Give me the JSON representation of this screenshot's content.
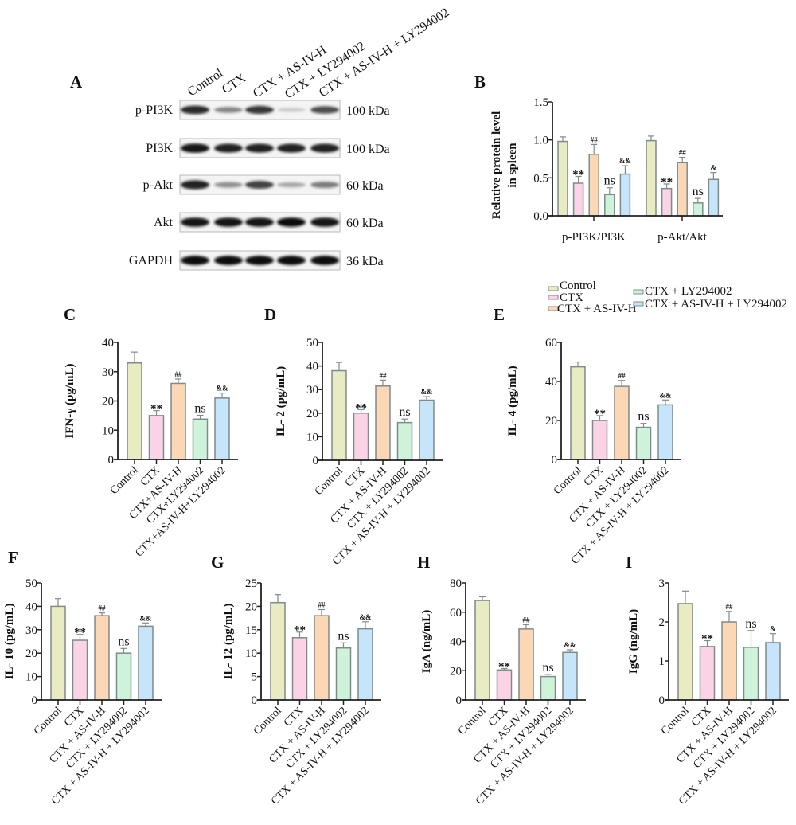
{
  "panel_letters": {
    "A": "A",
    "B": "B",
    "C": "C",
    "D": "D",
    "E": "E",
    "F": "F",
    "G": "G",
    "H": "H",
    "I": "I"
  },
  "colors": [
    "#e9ebc2",
    "#fbd3e6",
    "#fcd7b6",
    "#cef3da",
    "#c6e4fa"
  ],
  "bar_stroke": "#7d8c8a",
  "legend": [
    "Control",
    "CTX",
    "CTX + AS-IV-H",
    "CTX + LY294002",
    "CTX + AS-IV-H + LY294002"
  ],
  "western_blot": {
    "lanes": [
      "Control",
      "CTX",
      "CTX + AS-IV-H",
      "CTX + LY294002",
      "CTX + AS-IV-H + LY294002"
    ],
    "rows": [
      {
        "protein": "p-PI3K",
        "size": "100 kDa",
        "band_intensity": [
          0.85,
          0.45,
          0.8,
          0.15,
          0.7
        ]
      },
      {
        "protein": "PI3K",
        "size": "100 kDa",
        "band_intensity": [
          0.95,
          0.9,
          0.9,
          0.9,
          0.9
        ]
      },
      {
        "protein": "p-Akt",
        "size": "60 kDa",
        "band_intensity": [
          0.9,
          0.4,
          0.75,
          0.3,
          0.5
        ]
      },
      {
        "protein": "Akt",
        "size": "60 kDa",
        "band_intensity": [
          0.95,
          0.95,
          0.95,
          0.97,
          0.95
        ]
      },
      {
        "protein": "GAPDH",
        "size": "36 kDa",
        "band_intensity": [
          0.97,
          0.97,
          0.97,
          0.97,
          0.97
        ]
      }
    ]
  },
  "chart_data": [
    {
      "panel": "B",
      "type": "bar",
      "ylabel": [
        "Relative protein level",
        "in spleen"
      ],
      "categories": [
        "p-PI3K/PI3K",
        "p-Akt/Akt"
      ],
      "ylim": [
        0,
        1.5
      ],
      "yticks": [
        "0.0",
        "0.5",
        "1.0",
        "1.5"
      ],
      "series": [
        {
          "name": "Control",
          "values": [
            0.98,
            0.99
          ],
          "errors": [
            0.06,
            0.06
          ],
          "annotations": [
            "",
            ""
          ]
        },
        {
          "name": "CTX",
          "values": [
            0.43,
            0.36
          ],
          "errors": [
            0.09,
            0.06
          ],
          "annotations": [
            "**",
            "**"
          ]
        },
        {
          "name": "CTX + AS-IV-H",
          "values": [
            0.81,
            0.7
          ],
          "errors": [
            0.13,
            0.07
          ],
          "annotations": [
            "##",
            "##"
          ]
        },
        {
          "name": "CTX + LY294002",
          "values": [
            0.28,
            0.17
          ],
          "errors": [
            0.09,
            0.06
          ],
          "annotations": [
            "ns",
            "ns"
          ]
        },
        {
          "name": "CTX + AS-IV-H + LY294002",
          "values": [
            0.55,
            0.48
          ],
          "errors": [
            0.11,
            0.09
          ],
          "annotations": [
            "&&",
            "&"
          ]
        }
      ]
    },
    {
      "panel": "C",
      "type": "bar",
      "ylabel": "IFN-γ (pg/mL)",
      "ylim": [
        0,
        40
      ],
      "yticks": [
        "0",
        "10",
        "20",
        "30",
        "40"
      ],
      "categories": [
        "Control",
        "CTX",
        "CTX+AS-IV-H",
        "CTX+LY294002",
        "CTX+AS-IV-H+LY294002"
      ],
      "values": [
        33,
        15,
        26,
        13.8,
        21
      ],
      "errors": [
        3.7,
        1.7,
        1.5,
        1.3,
        1.7
      ],
      "annotations": [
        "",
        "**",
        "##",
        "ns",
        "&&"
      ]
    },
    {
      "panel": "D",
      "type": "bar",
      "ylabel": "IL- 2 (pg/mL)",
      "ylim": [
        0,
        50
      ],
      "yticks": [
        "0",
        "10",
        "20",
        "30",
        "40",
        "50"
      ],
      "categories": [
        "Control",
        "CTX",
        "CTX + AS-IV-H",
        "CTX + LY294002",
        "CTX + AS-IV-H + LY294002"
      ],
      "values": [
        38,
        20,
        31.5,
        16,
        25.5
      ],
      "errors": [
        3.5,
        1.5,
        2.5,
        1.5,
        1.5
      ],
      "annotations": [
        "",
        "**",
        "##",
        "ns",
        "&&"
      ]
    },
    {
      "panel": "E",
      "type": "bar",
      "ylabel": "IL- 4 (pg/mL)",
      "ylim": [
        0,
        60
      ],
      "yticks": [
        "0",
        "20",
        "40",
        "60"
      ],
      "categories": [
        "Control",
        "CTX",
        "CTX + AS-IV-H",
        "CTX + LY294002",
        "CTX + AS-IV-H + LY294002"
      ],
      "values": [
        47.5,
        20,
        37.5,
        16.5,
        28
      ],
      "errors": [
        2.5,
        2.5,
        3,
        2,
        2.5
      ],
      "annotations": [
        "",
        "**",
        "##",
        "ns",
        "&&"
      ]
    },
    {
      "panel": "F",
      "type": "bar",
      "ylabel": "IL- 10 (pg/mL)",
      "ylim": [
        0,
        50
      ],
      "yticks": [
        "0",
        "10",
        "20",
        "30",
        "40",
        "50"
      ],
      "categories": [
        "Control",
        "CTX",
        "CTX + AS-IV-H",
        "CTX + LY294002",
        "CTX + AS-IV-H + LY294002"
      ],
      "values": [
        40,
        25.5,
        36,
        20,
        31.5
      ],
      "errors": [
        3.3,
        2.5,
        1.2,
        2,
        1.4
      ],
      "annotations": [
        "",
        "**",
        "##",
        "ns",
        "&&"
      ]
    },
    {
      "panel": "G",
      "type": "bar",
      "ylabel": "IL- 12 (pg/mL)",
      "ylim": [
        0,
        25
      ],
      "yticks": [
        "0",
        "5",
        "10",
        "15",
        "20",
        "25"
      ],
      "categories": [
        "Control",
        "CTX",
        "CTX + AS-IV-H",
        "CTX + LY294002",
        "CTX + AS-IV-H + LY294002"
      ],
      "values": [
        20.8,
        13.3,
        18,
        11.1,
        15.2
      ],
      "errors": [
        1.7,
        1.2,
        1.3,
        1.1,
        1.5
      ],
      "annotations": [
        "",
        "**",
        "##",
        "ns",
        "&&"
      ]
    },
    {
      "panel": "H",
      "type": "bar",
      "ylabel": "IgA (ng/mL)",
      "ylim": [
        0,
        80
      ],
      "yticks": [
        "0",
        "20",
        "40",
        "60",
        "80"
      ],
      "categories": [
        "Control",
        "CTX",
        "CTX + AS-IV-H",
        "CTX + LY294002",
        "CTX + AS-IV-H + LY294002"
      ],
      "values": [
        68,
        20.5,
        48.5,
        16,
        32.5
      ],
      "errors": [
        2.5,
        1,
        3,
        1.5,
        1.8
      ],
      "annotations": [
        "",
        "**",
        "##",
        "ns",
        "&&"
      ]
    },
    {
      "panel": "I",
      "type": "bar",
      "ylabel": "IgG (ng/mL)",
      "ylim": [
        0,
        3
      ],
      "yticks": [
        "0",
        "1",
        "2",
        "3"
      ],
      "categories": [
        "Control",
        "CTX",
        "CTX + AS-IV-H",
        "CTX + LY294002",
        "CTX + AS-IV-H + LY294002"
      ],
      "values": [
        2.47,
        1.37,
        2.0,
        1.35,
        1.47
      ],
      "errors": [
        0.32,
        0.15,
        0.27,
        0.43,
        0.23
      ],
      "annotations": [
        "",
        "**",
        "##",
        "ns",
        "&"
      ]
    }
  ]
}
